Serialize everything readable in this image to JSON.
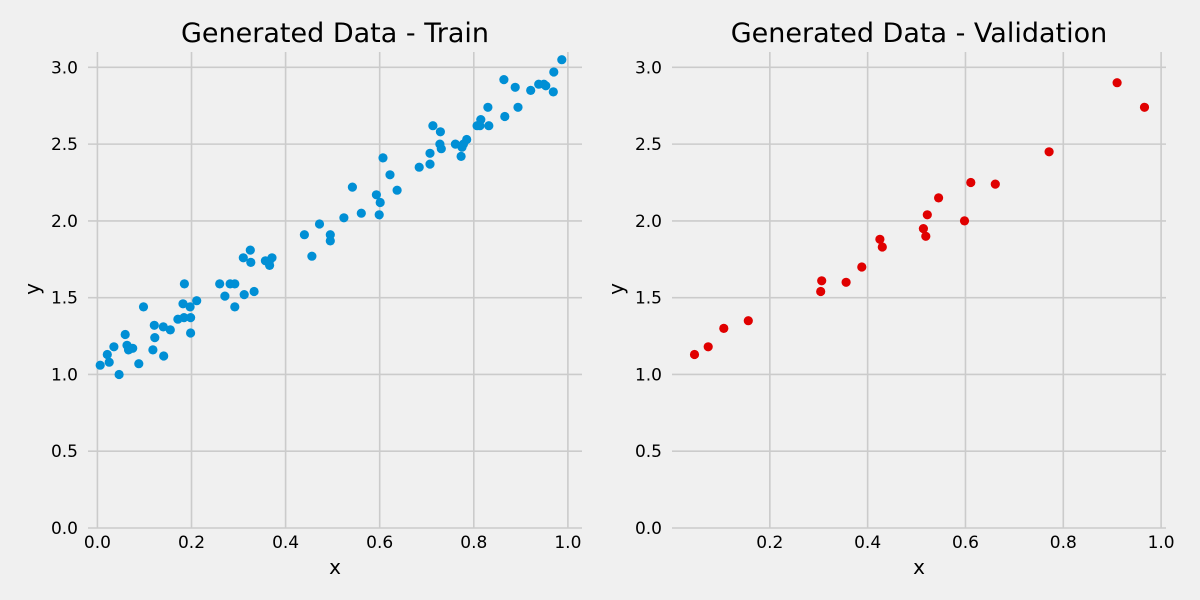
{
  "chart_data": [
    {
      "type": "scatter",
      "title": "Generated Data - Train",
      "xlabel": "x",
      "ylabel": "y",
      "xlim": [
        -0.02,
        1.03
      ],
      "ylim": [
        0,
        3.1
      ],
      "xticks": [
        "0.0",
        "0.2",
        "0.4",
        "0.6",
        "0.8",
        "1.0"
      ],
      "yticks": [
        "0.0",
        "0.5",
        "1.0",
        "1.5",
        "2.0",
        "2.5",
        "3.0"
      ],
      "grid": true,
      "color": "#008fd5",
      "points": [
        [
          0.006,
          1.06
        ],
        [
          0.021,
          1.13
        ],
        [
          0.025,
          1.08
        ],
        [
          0.035,
          1.18
        ],
        [
          0.046,
          1.0
        ],
        [
          0.059,
          1.26
        ],
        [
          0.063,
          1.19
        ],
        [
          0.066,
          1.16
        ],
        [
          0.075,
          1.17
        ],
        [
          0.088,
          1.07
        ],
        [
          0.098,
          1.44
        ],
        [
          0.118,
          1.16
        ],
        [
          0.121,
          1.32
        ],
        [
          0.122,
          1.24
        ],
        [
          0.14,
          1.31
        ],
        [
          0.141,
          1.12
        ],
        [
          0.155,
          1.29
        ],
        [
          0.171,
          1.36
        ],
        [
          0.182,
          1.46
        ],
        [
          0.185,
          1.59
        ],
        [
          0.184,
          1.37
        ],
        [
          0.197,
          1.44
        ],
        [
          0.198,
          1.37
        ],
        [
          0.198,
          1.27
        ],
        [
          0.211,
          1.48
        ],
        [
          0.26,
          1.59
        ],
        [
          0.271,
          1.51
        ],
        [
          0.282,
          1.59
        ],
        [
          0.292,
          1.59
        ],
        [
          0.292,
          1.44
        ],
        [
          0.31,
          1.76
        ],
        [
          0.312,
          1.52
        ],
        [
          0.325,
          1.81
        ],
        [
          0.326,
          1.73
        ],
        [
          0.333,
          1.54
        ],
        [
          0.357,
          1.74
        ],
        [
          0.366,
          1.71
        ],
        [
          0.365,
          1.73
        ],
        [
          0.371,
          1.76
        ],
        [
          0.44,
          1.91
        ],
        [
          0.456,
          1.77
        ],
        [
          0.472,
          1.98
        ],
        [
          0.495,
          1.87
        ],
        [
          0.495,
          1.91
        ],
        [
          0.524,
          2.02
        ],
        [
          0.542,
          2.22
        ],
        [
          0.561,
          2.05
        ],
        [
          0.593,
          2.17
        ],
        [
          0.599,
          2.04
        ],
        [
          0.601,
          2.12
        ],
        [
          0.607,
          2.41
        ],
        [
          0.622,
          2.3
        ],
        [
          0.637,
          2.2
        ],
        [
          0.684,
          2.35
        ],
        [
          0.707,
          2.37
        ],
        [
          0.707,
          2.44
        ],
        [
          0.713,
          2.62
        ],
        [
          0.728,
          2.5
        ],
        [
          0.729,
          2.58
        ],
        [
          0.731,
          2.47
        ],
        [
          0.761,
          2.5
        ],
        [
          0.773,
          2.42
        ],
        [
          0.775,
          2.48
        ],
        [
          0.778,
          2.5
        ],
        [
          0.785,
          2.53
        ],
        [
          0.807,
          2.62
        ],
        [
          0.815,
          2.66
        ],
        [
          0.813,
          2.62
        ],
        [
          0.83,
          2.74
        ],
        [
          0.832,
          2.62
        ],
        [
          0.864,
          2.92
        ],
        [
          0.866,
          2.68
        ],
        [
          0.888,
          2.87
        ],
        [
          0.894,
          2.74
        ],
        [
          0.921,
          2.85
        ],
        [
          0.938,
          2.89
        ],
        [
          0.949,
          2.89
        ],
        [
          0.953,
          2.88
        ],
        [
          0.97,
          2.97
        ],
        [
          0.969,
          2.84
        ],
        [
          0.987,
          3.05
        ]
      ]
    },
    {
      "type": "scatter",
      "title": "Generated Data - Validation",
      "xlabel": "x",
      "ylabel": "y",
      "xlim": [
        0.0,
        1.01
      ],
      "ylim": [
        0,
        3.1
      ],
      "xticks": [
        "0.2",
        "0.4",
        "0.6",
        "0.8",
        "1.0"
      ],
      "yticks": [
        "0.0",
        "0.5",
        "1.0",
        "1.5",
        "2.0",
        "2.5",
        "3.0"
      ],
      "grid": true,
      "color": "#e00000",
      "points": [
        [
          0.046,
          1.13
        ],
        [
          0.074,
          1.18
        ],
        [
          0.106,
          1.3
        ],
        [
          0.156,
          1.35
        ],
        [
          0.304,
          1.54
        ],
        [
          0.306,
          1.61
        ],
        [
          0.356,
          1.6
        ],
        [
          0.388,
          1.7
        ],
        [
          0.425,
          1.88
        ],
        [
          0.43,
          1.83
        ],
        [
          0.514,
          1.95
        ],
        [
          0.519,
          1.9
        ],
        [
          0.522,
          2.04
        ],
        [
          0.545,
          2.15
        ],
        [
          0.598,
          2.0
        ],
        [
          0.611,
          2.25
        ],
        [
          0.661,
          2.24
        ],
        [
          0.771,
          2.45
        ],
        [
          0.91,
          2.9
        ],
        [
          0.966,
          2.74
        ]
      ]
    }
  ]
}
